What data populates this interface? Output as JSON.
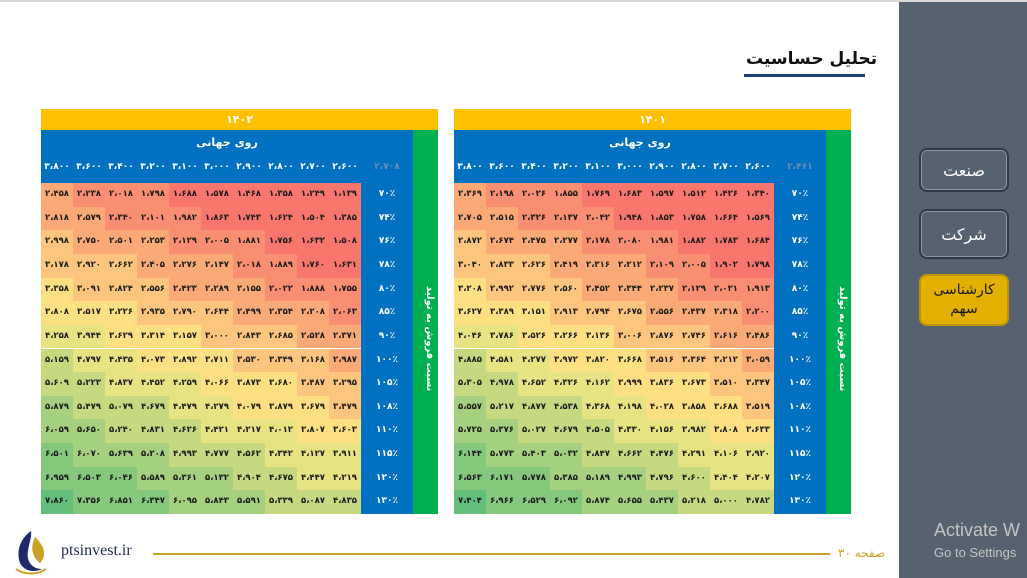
{
  "title": "تحلیل حساسیت",
  "sidebar": {
    "items": [
      {
        "label": "صنعت"
      },
      {
        "label": "شرکت"
      },
      {
        "label": "کارشناسی سهم"
      }
    ]
  },
  "footer": {
    "website": "ptsinvest.ir",
    "page": "صفحه ۳۰"
  },
  "watermark": {
    "line1": "Activate W",
    "line2": "Go to Settings"
  },
  "tables": [
    {
      "year": "۱۴۰۱",
      "x_title": "روی جهانی",
      "y_title": "نسبت فروش به تولید",
      "corner": "۲،۴۶۱",
      "x_headers": [
        "۲،۶۰۰",
        "۲،۷۰۰",
        "۲،۸۰۰",
        "۲،۹۰۰",
        "۳،۰۰۰",
        "۳،۱۰۰",
        "۳،۲۰۰",
        "۳،۴۰۰",
        "۳،۶۰۰",
        "۳،۸۰۰"
      ],
      "y_headers": [
        "۷۰٪",
        "۷۴٪",
        "۷۶٪",
        "۷۸٪",
        "۸۰٪",
        "۸۵٪",
        "۹۰٪",
        "۱۰۰٪",
        "۱۰۵٪",
        "۱۰۸٪",
        "۱۱۰٪",
        "۱۱۵٪",
        "۱۲۰٪",
        "۱۳۰٪"
      ],
      "rows": [
        [
          "۱،۴۲۶",
          "۱،۵۱۲",
          "۱،۵۹۷",
          "۱،۶۸۳",
          "۱،۷۶۹",
          "۱،۸۵۵",
          "۲،۰۲۶",
          "۲،۱۹۸",
          "۲،۳۶۹",
          "۱،۳۴۰"
        ],
        [
          "۱،۶۶۴",
          "۱،۷۵۸",
          "۱،۸۵۳",
          "۱،۹۴۸",
          "۲،۰۴۲",
          "۲،۱۳۷",
          "۲،۳۲۶",
          "۲،۵۱۵",
          "۲،۷۰۵",
          "۱،۵۶۹"
        ],
        [
          "۱،۷۸۳",
          "۱،۸۸۲",
          "۱،۹۸۱",
          "۲،۰۸۰",
          "۲،۱۷۸",
          "۲،۲۷۷",
          "۲،۴۷۵",
          "۲،۶۷۴",
          "۲،۸۷۲",
          "۱،۶۸۴"
        ],
        [
          "۱،۹۰۲",
          "۲،۰۰۵",
          "۲،۱۰۹",
          "۲،۲۱۲",
          "۲،۳۱۶",
          "۲،۴۱۹",
          "۲،۶۲۶",
          "۲،۸۳۳",
          "۳،۰۴۰",
          "۱،۷۹۸"
        ],
        [
          "۲،۰۲۱",
          "۲،۱۲۹",
          "۲،۲۳۷",
          "۲،۳۴۴",
          "۲،۴۵۲",
          "۲،۵۶۰",
          "۲،۷۷۶",
          "۲،۹۹۲",
          "۳،۲۰۸",
          "۱،۹۱۳"
        ],
        [
          "۲،۳۱۸",
          "۲،۴۳۷",
          "۲،۵۵۶",
          "۲،۶۷۵",
          "۲،۷۹۴",
          "۲،۹۱۳",
          "۳،۱۵۱",
          "۳،۳۸۹",
          "۳،۶۲۷",
          "۲،۲۰۰"
        ],
        [
          "۲،۶۱۶",
          "۲،۷۴۶",
          "۲،۸۷۶",
          "۳،۰۰۶",
          "۳،۱۳۶",
          "۳،۲۶۶",
          "۳،۵۲۶",
          "۳،۷۸۶",
          "۴،۰۴۶",
          "۲،۴۸۶"
        ],
        [
          "۳،۲۱۲",
          "۳،۳۶۴",
          "۳،۵۱۶",
          "۳،۶۶۸",
          "۳،۸۲۰",
          "۳،۹۷۲",
          "۴،۲۷۷",
          "۴،۵۸۱",
          "۴،۸۸۵",
          "۳،۰۵۹"
        ],
        [
          "۳،۵۱۰",
          "۳،۶۷۳",
          "۳،۸۳۶",
          "۳،۹۹۹",
          "۴،۱۶۲",
          "۴،۳۲۶",
          "۴،۶۵۲",
          "۴،۹۷۸",
          "۵،۳۰۵",
          "۳،۳۴۷"
        ],
        [
          "۳،۶۸۸",
          "۳،۸۵۸",
          "۴،۰۲۸",
          "۴،۱۹۸",
          "۴،۳۶۸",
          "۴،۵۳۸",
          "۴،۸۷۷",
          "۵،۲۱۷",
          "۵،۵۵۷",
          "۳،۵۱۹"
        ],
        [
          "۳،۸۰۸",
          "۳،۹۸۲",
          "۴،۱۵۶",
          "۴،۳۳۰",
          "۴،۵۰۵",
          "۴،۶۷۹",
          "۵،۰۲۷",
          "۵،۳۷۶",
          "۵،۷۲۵",
          "۳،۶۳۳"
        ],
        [
          "۴،۱۰۶",
          "۴،۲۹۱",
          "۴،۴۷۶",
          "۴،۶۶۲",
          "۴،۸۴۷",
          "۵،۰۳۲",
          "۵،۴۰۳",
          "۵،۷۷۳",
          "۶،۱۴۴",
          "۳،۹۲۰"
        ],
        [
          "۴،۴۰۴",
          "۴،۶۰۰",
          "۴،۷۹۶",
          "۴،۹۹۳",
          "۵،۱۸۹",
          "۵،۳۸۵",
          "۵،۷۷۸",
          "۶،۱۷۱",
          "۶،۵۶۳",
          "۴،۲۰۷"
        ],
        [
          "۵،۰۰۰",
          "۵،۲۱۸",
          "۵،۴۳۷",
          "۵،۶۵۵",
          "۵،۸۷۴",
          "۶،۰۹۲",
          "۶،۵۲۹",
          "۶،۹۶۶",
          "۷،۴۰۴",
          "۴،۷۸۲"
        ]
      ]
    },
    {
      "year": "۱۴۰۲",
      "x_title": "روی جهانی",
      "y_title": "نسبت فروش به تولید",
      "corner": "۲،۷۰۸",
      "x_headers": [
        "۲،۶۰۰",
        "۲،۷۰۰",
        "۲،۸۰۰",
        "۲،۹۰۰",
        "۳،۰۰۰",
        "۳،۱۰۰",
        "۳،۲۰۰",
        "۳،۴۰۰",
        "۳،۶۰۰",
        "۳،۸۰۰"
      ],
      "y_headers": [
        "۷۰٪",
        "۷۴٪",
        "۷۶٪",
        "۷۸٪",
        "۸۰٪",
        "۸۵٪",
        "۹۰٪",
        "۱۰۰٪",
        "۱۰۵٪",
        "۱۰۸٪",
        "۱۱۰٪",
        "۱۱۵٪",
        "۱۲۰٪",
        "۱۳۰٪"
      ],
      "rows": [
        [
          "۱،۲۴۹",
          "۱،۳۵۸",
          "۱،۴۶۸",
          "۱،۵۷۸",
          "۱،۶۸۸",
          "۱،۷۹۸",
          "۲،۰۱۸",
          "۲،۲۳۸",
          "۲،۴۵۸",
          "۱،۱۳۹"
        ],
        [
          "۱،۵۰۴",
          "۱،۶۲۴",
          "۱،۷۴۳",
          "۱،۸۶۳",
          "۱،۹۸۲",
          "۲،۱۰۱",
          "۲،۳۴۰",
          "۲،۵۷۹",
          "۲،۸۱۸",
          "۱،۳۸۵"
        ],
        [
          "۱،۶۳۲",
          "۱،۷۵۶",
          "۱،۸۸۱",
          "۲،۰۰۵",
          "۲،۱۲۹",
          "۲،۲۵۳",
          "۲،۵۰۱",
          "۲،۷۵۰",
          "۲،۹۹۸",
          "۱،۵۰۸"
        ],
        [
          "۱،۷۶۰",
          "۱،۸۸۹",
          "۲،۰۱۸",
          "۲،۱۴۷",
          "۲،۲۷۶",
          "۲،۴۰۵",
          "۲،۶۶۲",
          "۲،۹۲۰",
          "۳،۱۷۸",
          "۱،۶۳۱"
        ],
        [
          "۱،۸۸۸",
          "۲،۰۲۲",
          "۲،۱۵۵",
          "۲،۲۸۹",
          "۲،۴۲۳",
          "۲،۵۵۶",
          "۲،۸۲۴",
          "۳،۰۹۱",
          "۳،۳۵۸",
          "۱،۷۵۵"
        ],
        [
          "۲،۲۰۸",
          "۲،۳۵۴",
          "۲،۴۹۹",
          "۲،۶۴۴",
          "۲،۷۹۰",
          "۲،۹۳۵",
          "۳،۲۲۶",
          "۳،۵۱۷",
          "۳،۸۰۸",
          "۲،۰۶۳"
        ],
        [
          "۲،۵۲۸",
          "۲،۶۸۵",
          "۲،۸۴۳",
          "۳،۰۰۰",
          "۳،۱۵۷",
          "۳،۳۱۴",
          "۳،۶۲۹",
          "۳،۹۴۴",
          "۴،۲۵۸",
          "۲،۳۷۱"
        ],
        [
          "۳،۱۶۸",
          "۳،۳۴۹",
          "۳،۵۳۰",
          "۳،۷۱۱",
          "۳،۸۹۲",
          "۴،۰۷۳",
          "۴،۴۳۵",
          "۴،۷۹۷",
          "۵،۱۵۹",
          "۲،۹۸۷"
        ],
        [
          "۳،۴۸۷",
          "۳،۶۸۰",
          "۳،۸۷۳",
          "۴،۰۶۶",
          "۴،۲۵۹",
          "۴،۴۵۲",
          "۴،۸۳۷",
          "۵،۲۲۳",
          "۵،۶۰۹",
          "۳،۲۹۵"
        ],
        [
          "۳،۶۷۹",
          "۳،۸۷۹",
          "۴،۰۷۹",
          "۴،۲۷۹",
          "۴،۴۷۹",
          "۴،۶۷۹",
          "۵،۰۷۹",
          "۵،۴۷۹",
          "۵،۸۷۹",
          "۳،۴۷۹"
        ],
        [
          "۳،۸۰۷",
          "۴،۰۱۲",
          "۴،۲۱۷",
          "۴،۴۲۱",
          "۴،۶۲۶",
          "۴،۸۳۱",
          "۵،۲۴۰",
          "۵،۶۵۰",
          "۶،۰۵۹",
          "۳،۶۰۳"
        ],
        [
          "۴،۱۲۷",
          "۴،۳۴۲",
          "۴،۵۶۲",
          "۴،۷۷۷",
          "۴،۹۹۳",
          "۵،۲۰۸",
          "۵،۶۳۹",
          "۶،۰۷۰",
          "۶،۵۰۱",
          "۳،۹۱۱"
        ],
        [
          "۴،۴۴۷",
          "۴،۶۷۵",
          "۴،۹۰۴",
          "۵،۱۳۲",
          "۵،۳۶۱",
          "۵،۵۸۹",
          "۶،۰۴۶",
          "۶،۵۰۳",
          "۶،۹۵۹",
          "۴،۲۱۹"
        ],
        [
          "۵،۰۸۷",
          "۵،۳۳۹",
          "۵،۵۹۱",
          "۵،۸۴۳",
          "۶،۰۹۵",
          "۶،۳۴۷",
          "۶،۸۵۱",
          "۷،۳۵۶",
          "۷،۸۶۰",
          "۴،۸۳۵"
        ]
      ]
    }
  ]
}
